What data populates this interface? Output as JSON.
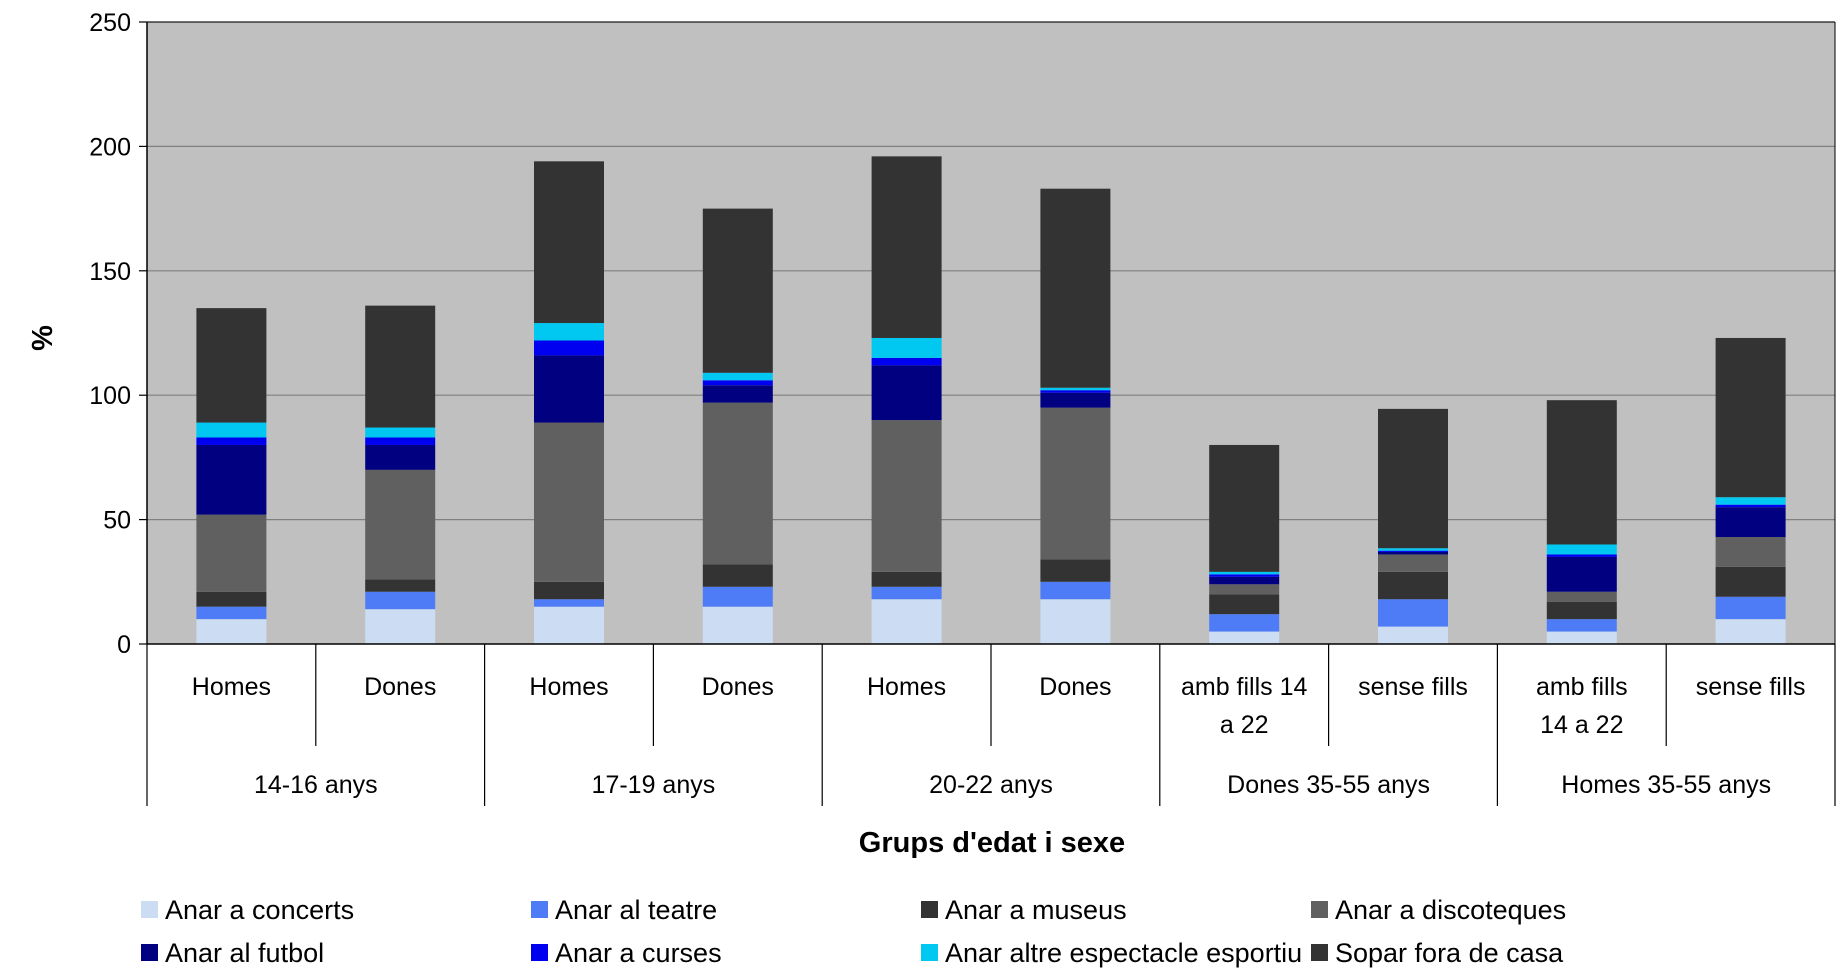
{
  "chart_data": {
    "type": "bar",
    "stacked": true,
    "ylabel": "%",
    "xlabel": "Grups d'edat i sexe",
    "ylim": [
      0,
      250
    ],
    "yticks": [
      0,
      50,
      100,
      150,
      200,
      250
    ],
    "grid": true,
    "legend_position": "bottom",
    "plot_background": "#c0c0c0",
    "groups": [
      {
        "label": "14-16 anys",
        "span": 2
      },
      {
        "label": "17-19 anys",
        "span": 2
      },
      {
        "label": "20-22 anys",
        "span": 2
      },
      {
        "label": "Dones 35-55 anys",
        "span": 2
      },
      {
        "label": "Homes 35-55 anys",
        "span": 2
      }
    ],
    "categories": [
      [
        "Homes"
      ],
      [
        "Dones"
      ],
      [
        "Homes"
      ],
      [
        "Dones"
      ],
      [
        "Homes"
      ],
      [
        "Dones"
      ],
      [
        "amb fills      14",
        "a 22"
      ],
      [
        "sense fills"
      ],
      [
        "amb fills",
        "14 a 22"
      ],
      [
        "sense fills"
      ]
    ],
    "series": [
      {
        "name": "Anar a concerts",
        "color": "#ccdcf2",
        "values": [
          10,
          14,
          15,
          15,
          18,
          18,
          5,
          7,
          5,
          10
        ]
      },
      {
        "name": "Anar al teatre",
        "color": "#4d7cf6",
        "values": [
          5,
          7,
          3,
          8,
          5,
          7,
          7,
          11,
          5,
          9
        ]
      },
      {
        "name": "Anar a museus",
        "color": "#333333",
        "values": [
          6,
          5,
          7,
          9,
          6,
          9,
          8,
          11,
          7,
          12
        ]
      },
      {
        "name": "Anar a discoteques",
        "color": "#606060",
        "values": [
          31,
          44,
          64,
          65,
          61,
          61,
          4,
          7,
          4,
          12
        ]
      },
      {
        "name": "Anar al futbol",
        "color": "#000080",
        "values": [
          28,
          10,
          27,
          7,
          22,
          6,
          3,
          1,
          14,
          12
        ]
      },
      {
        "name": "Anar a curses",
        "color": "#0000f0",
        "values": [
          3,
          3,
          6,
          2,
          3,
          1,
          1,
          0.5,
          1,
          1
        ]
      },
      {
        "name": "Anar altre espectacle esportiu",
        "color": "#00c8f0",
        "values": [
          6,
          4,
          7,
          3,
          8,
          1,
          1,
          1,
          4,
          3
        ]
      },
      {
        "name": "Sopar fora de casa",
        "color": "#333333",
        "values": [
          46,
          49,
          65,
          66,
          73,
          80,
          51,
          56,
          58,
          64
        ]
      }
    ]
  }
}
